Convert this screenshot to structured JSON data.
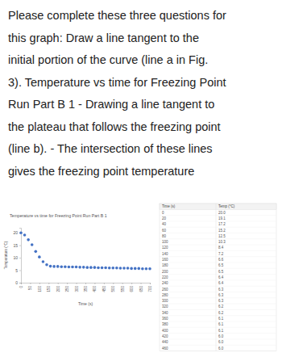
{
  "question": {
    "lines": [
      "Please complete these three questions for",
      "this graph: Draw a line tangent to the",
      "initial portion of the curve (line a in Fig.",
      "3). Temperature vs time for Freezing Point",
      "Run Part B 1  - Drawing a line tangent to",
      "the plateau that follows the freezing point",
      "(line b).  - The intersection of these lines",
      "gives the freezing point temperature"
    ]
  },
  "chart_data": {
    "type": "scatter",
    "title": "Temperature vs time for Freezing Point Run Part B 1",
    "x_label": "Time (s)",
    "y_label": "Temperature (°C)",
    "x": [
      0,
      20,
      40,
      60,
      80,
      100,
      120,
      140,
      160,
      180,
      200,
      220,
      240,
      260,
      280,
      300,
      320,
      340,
      360,
      380,
      400,
      420,
      440,
      460,
      480,
      500,
      520,
      540,
      560,
      580,
      600,
      620,
      640,
      660,
      680,
      700
    ],
    "values": [
      20.0,
      19.1,
      17.2,
      15.2,
      12.5,
      10.3,
      8.4,
      7.2,
      6.6,
      6.5,
      6.5,
      6.4,
      6.4,
      6.3,
      6.3,
      6.3,
      6.2,
      6.2,
      6.1,
      6.1,
      6.1,
      6.0,
      6.0,
      6.0,
      5.9,
      5.9,
      5.9,
      5.8,
      5.8,
      5.8,
      5.7,
      5.7,
      5.7,
      5.6,
      5.6,
      5.6
    ],
    "color": "#4472c4",
    "xlim": [
      0,
      700
    ],
    "xticks": [
      0,
      50,
      100,
      150,
      200,
      250,
      300,
      350,
      400,
      450,
      500,
      550,
      600,
      650,
      700
    ],
    "ylim": [
      0,
      22
    ],
    "yticks": [
      0,
      5,
      10,
      15,
      20
    ],
    "grid": false,
    "marker": "circle"
  },
  "table": {
    "header": [
      "Time (s)",
      "Temp (°C)"
    ],
    "rows": [
      [
        "0",
        "20.0"
      ],
      [
        "20",
        "19.1"
      ],
      [
        "40",
        "17.2"
      ],
      [
        "60",
        "15.2"
      ],
      [
        "80",
        "12.5"
      ],
      [
        "100",
        "10.3"
      ],
      [
        "120",
        "8.4"
      ],
      [
        "140",
        "7.2"
      ],
      [
        "160",
        "6.6"
      ],
      [
        "180",
        "6.5"
      ],
      [
        "200",
        "6.5"
      ],
      [
        "220",
        "6.4"
      ],
      [
        "240",
        "6.4"
      ],
      [
        "260",
        "6.3"
      ],
      [
        "280",
        "6.3"
      ],
      [
        "300",
        "6.3"
      ],
      [
        "320",
        "6.2"
      ],
      [
        "340",
        "6.2"
      ],
      [
        "360",
        "6.1"
      ],
      [
        "380",
        "6.1"
      ],
      [
        "400",
        "6.1"
      ],
      [
        "420",
        "6.0"
      ],
      [
        "440",
        "6.0"
      ],
      [
        "460",
        "6.0"
      ]
    ]
  }
}
